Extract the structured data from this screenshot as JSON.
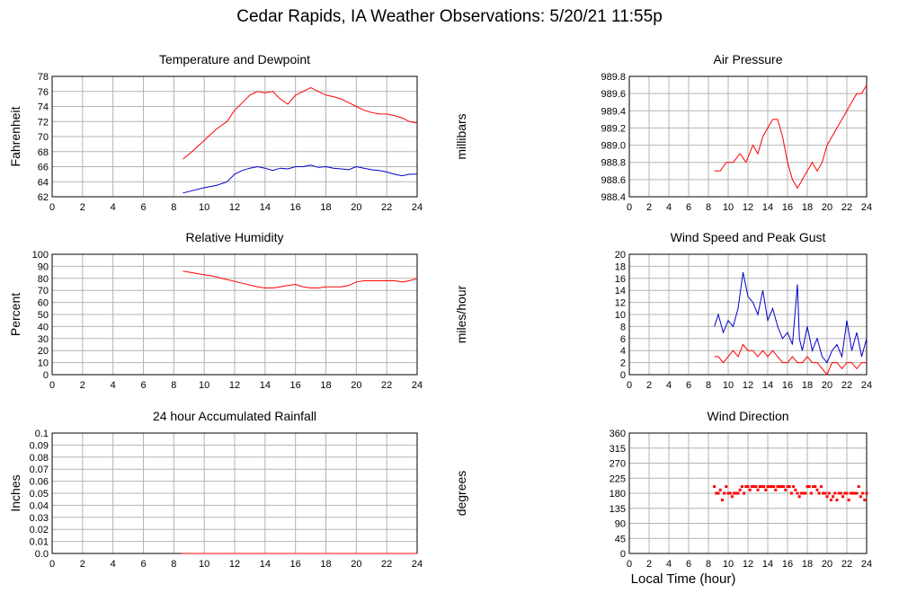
{
  "page": {
    "title": "Cedar Rapids, IA Weather Observations: 5/20/21 11:55p",
    "xlabel": "Local Time (hour)"
  },
  "colors": {
    "series1": "#ff0000",
    "series2": "#0000cc",
    "grid": "#b4b4b4"
  },
  "chart_data": [
    {
      "type": "line",
      "title": "Temperature and Dewpoint",
      "xlabel": "",
      "ylabel": "Fahrenheit",
      "xlim": [
        0,
        24
      ],
      "ylim": [
        62,
        78
      ],
      "xticks": [
        "0",
        "2",
        "4",
        "6",
        "8",
        "10",
        "12",
        "14",
        "16",
        "18",
        "20",
        "22",
        "24"
      ],
      "yticks": [
        "62",
        "64",
        "66",
        "68",
        "70",
        "72",
        "74",
        "76",
        "78"
      ],
      "grid": true,
      "series": [
        {
          "color": "#ff0000",
          "x": [
            8.6,
            9.2,
            10,
            10.8,
            11.5,
            12,
            12.5,
            13,
            13.5,
            14,
            14.5,
            15,
            15.5,
            16,
            16.5,
            17,
            17.5,
            18,
            18.5,
            19,
            19.5,
            20,
            20.5,
            21,
            21.5,
            22,
            22.5,
            23,
            23.5,
            24
          ],
          "y": [
            67,
            68,
            69.5,
            71,
            72,
            73.5,
            74.5,
            75.5,
            76,
            75.8,
            76,
            75,
            74.3,
            75.5,
            76,
            76.5,
            76,
            75.5,
            75.3,
            75,
            74.5,
            74,
            73.5,
            73.2,
            73,
            73,
            72.8,
            72.5,
            72,
            71.8
          ]
        },
        {
          "color": "#0000cc",
          "x": [
            8.6,
            9.2,
            10,
            10.8,
            11.5,
            12,
            12.5,
            13,
            13.5,
            14,
            14.5,
            15,
            15.5,
            16,
            16.5,
            17,
            17.5,
            18,
            18.5,
            19,
            19.5,
            20,
            20.5,
            21,
            21.5,
            22,
            22.5,
            23,
            23.5,
            24
          ],
          "y": [
            62.5,
            62.8,
            63.2,
            63.5,
            64,
            65,
            65.5,
            65.8,
            66,
            65.8,
            65.5,
            65.8,
            65.7,
            66,
            66,
            66.2,
            65.9,
            66,
            65.8,
            65.7,
            65.6,
            66,
            65.8,
            65.6,
            65.5,
            65.3,
            65,
            64.8,
            65,
            65
          ]
        }
      ]
    },
    {
      "type": "line",
      "title": "Air Pressure",
      "xlabel": "",
      "ylabel": "millibars",
      "xlim": [
        0,
        24
      ],
      "ylim": [
        988.4,
        989.8
      ],
      "xticks": [
        "0",
        "2",
        "4",
        "6",
        "8",
        "10",
        "12",
        "14",
        "16",
        "18",
        "20",
        "22",
        "24"
      ],
      "yticks": [
        "988.4",
        "988.6",
        "988.8",
        "989.0",
        "989.2",
        "989.4",
        "989.6",
        "989.8"
      ],
      "grid": true,
      "series": [
        {
          "color": "#ff0000",
          "x": [
            8.6,
            9.2,
            9.8,
            10.5,
            11.2,
            11.8,
            12.5,
            13,
            13.5,
            14,
            14.5,
            15,
            15.5,
            16,
            16.5,
            17,
            17.5,
            18,
            18.5,
            19,
            19.5,
            20,
            20.5,
            21,
            21.5,
            22,
            22.5,
            23,
            23.5,
            24
          ],
          "y": [
            988.7,
            988.7,
            988.8,
            988.8,
            988.9,
            988.8,
            989.0,
            988.9,
            989.1,
            989.2,
            989.3,
            989.3,
            989.1,
            988.8,
            988.6,
            988.5,
            988.6,
            988.7,
            988.8,
            988.7,
            988.8,
            989.0,
            989.1,
            989.2,
            989.3,
            989.4,
            989.5,
            989.6,
            989.6,
            989.7
          ]
        }
      ]
    },
    {
      "type": "line",
      "title": "Relative Humidity",
      "xlabel": "",
      "ylabel": "Percent",
      "xlim": [
        0,
        24
      ],
      "ylim": [
        0,
        100
      ],
      "xticks": [
        "0",
        "2",
        "4",
        "6",
        "8",
        "10",
        "12",
        "14",
        "16",
        "18",
        "20",
        "22",
        "24"
      ],
      "yticks": [
        "0",
        "10",
        "20",
        "30",
        "40",
        "50",
        "60",
        "70",
        "80",
        "90",
        "100"
      ],
      "grid": true,
      "series": [
        {
          "color": "#ff0000",
          "x": [
            8.6,
            9.5,
            10.5,
            11.5,
            12.5,
            13.5,
            14,
            14.5,
            15,
            15.5,
            16,
            16.5,
            17,
            17.5,
            18,
            18.5,
            19,
            19.5,
            20,
            20.5,
            21,
            21.5,
            22,
            22.5,
            23,
            23.5,
            24
          ],
          "y": [
            86,
            84,
            82,
            79,
            76,
            73,
            72,
            72,
            73,
            74,
            75,
            73,
            72,
            72,
            73,
            73,
            73,
            74,
            77,
            78,
            78,
            78,
            78,
            78,
            77,
            78,
            80
          ]
        }
      ]
    },
    {
      "type": "line",
      "title": "Wind Speed and Peak Gust",
      "xlabel": "",
      "ylabel": "miles/hour",
      "xlim": [
        0,
        24
      ],
      "ylim": [
        0,
        20
      ],
      "xticks": [
        "0",
        "2",
        "4",
        "6",
        "8",
        "10",
        "12",
        "14",
        "16",
        "18",
        "20",
        "22",
        "24"
      ],
      "yticks": [
        "0",
        "2",
        "4",
        "6",
        "8",
        "10",
        "12",
        "14",
        "16",
        "18",
        "20"
      ],
      "grid": true,
      "series": [
        {
          "color": "#0000cc",
          "x": [
            8.6,
            9,
            9.5,
            10,
            10.5,
            11,
            11.5,
            12,
            12.5,
            13,
            13.5,
            14,
            14.5,
            15,
            15.5,
            16,
            16.5,
            17,
            17.2,
            17.5,
            18,
            18.5,
            19,
            19.5,
            20,
            20.5,
            21,
            21.5,
            22,
            22.5,
            23,
            23.5,
            24
          ],
          "y": [
            8,
            10,
            7,
            9,
            8,
            11,
            17,
            13,
            12,
            10,
            14,
            9,
            11,
            8,
            6,
            7,
            5,
            15,
            6,
            4,
            8,
            4,
            6,
            3,
            2,
            4,
            5,
            3,
            9,
            4,
            7,
            3,
            6
          ]
        },
        {
          "color": "#ff0000",
          "x": [
            8.6,
            9,
            9.5,
            10,
            10.5,
            11,
            11.5,
            12,
            12.5,
            13,
            13.5,
            14,
            14.5,
            15,
            15.5,
            16,
            16.5,
            17,
            17.5,
            18,
            18.5,
            19,
            19.5,
            20,
            20.5,
            21,
            21.5,
            22,
            22.5,
            23,
            23.5,
            24
          ],
          "y": [
            3,
            3,
            2,
            3,
            4,
            3,
            5,
            4,
            4,
            3,
            4,
            3,
            4,
            3,
            2,
            2,
            3,
            2,
            2,
            3,
            2,
            2,
            1,
            0,
            2,
            2,
            1,
            2,
            2,
            1,
            2,
            2
          ]
        }
      ]
    },
    {
      "type": "line",
      "title": "24 hour Accumulated Rainfall",
      "xlabel": "",
      "ylabel": "Inches",
      "xlim": [
        0,
        24
      ],
      "ylim": [
        0,
        0.1
      ],
      "xticks": [
        "0",
        "2",
        "4",
        "6",
        "8",
        "10",
        "12",
        "14",
        "16",
        "18",
        "20",
        "22",
        "24"
      ],
      "yticks": [
        "0.0",
        "0.01",
        "0.02",
        "0.03",
        "0.04",
        "0.05",
        "0.06",
        "0.07",
        "0.08",
        "0.09",
        "0.1"
      ],
      "grid": true,
      "series": [
        {
          "color": "#ff0000",
          "x": [
            8.5,
            24
          ],
          "y": [
            0,
            0
          ]
        }
      ]
    },
    {
      "type": "scatter",
      "title": "Wind Direction",
      "xlabel": "",
      "ylabel": "degrees",
      "xlim": [
        0,
        24
      ],
      "ylim": [
        0,
        360
      ],
      "xticks": [
        "0",
        "2",
        "4",
        "6",
        "8",
        "10",
        "12",
        "14",
        "16",
        "18",
        "20",
        "22",
        "24"
      ],
      "yticks": [
        "0",
        "45",
        "90",
        "135",
        "180",
        "225",
        "270",
        "315",
        "360"
      ],
      "grid": true,
      "series": [
        {
          "color": "#ff0000",
          "x": [
            8.6,
            8.8,
            9.0,
            9.2,
            9.4,
            9.6,
            9.8,
            10.0,
            10.2,
            10.4,
            10.6,
            10.8,
            11.0,
            11.2,
            11.4,
            11.6,
            11.8,
            12.0,
            12.2,
            12.4,
            12.6,
            12.8,
            13.0,
            13.2,
            13.4,
            13.6,
            13.8,
            14.0,
            14.2,
            14.4,
            14.6,
            14.8,
            15.0,
            15.2,
            15.4,
            15.6,
            15.8,
            16.0,
            16.2,
            16.4,
            16.6,
            16.8,
            17.0,
            17.2,
            17.4,
            17.6,
            17.8,
            18.0,
            18.2,
            18.4,
            18.6,
            18.8,
            19.0,
            19.2,
            19.4,
            19.6,
            19.8,
            20.0,
            20.2,
            20.4,
            20.6,
            20.8,
            21.0,
            21.2,
            21.4,
            21.6,
            21.8,
            22.0,
            22.2,
            22.4,
            22.6,
            22.8,
            23.0,
            23.2,
            23.4,
            23.6,
            23.8,
            24.0
          ],
          "y": [
            200,
            180,
            180,
            190,
            160,
            180,
            200,
            180,
            180,
            170,
            180,
            180,
            180,
            190,
            200,
            180,
            200,
            200,
            190,
            200,
            200,
            200,
            190,
            200,
            200,
            200,
            190,
            200,
            200,
            200,
            200,
            190,
            200,
            200,
            200,
            200,
            190,
            200,
            200,
            180,
            200,
            190,
            180,
            170,
            180,
            180,
            180,
            200,
            200,
            180,
            200,
            200,
            190,
            180,
            200,
            180,
            180,
            170,
            180,
            160,
            170,
            180,
            160,
            180,
            180,
            170,
            180,
            180,
            160,
            180,
            180,
            180,
            180,
            200,
            170,
            180,
            160,
            180
          ]
        }
      ]
    }
  ]
}
